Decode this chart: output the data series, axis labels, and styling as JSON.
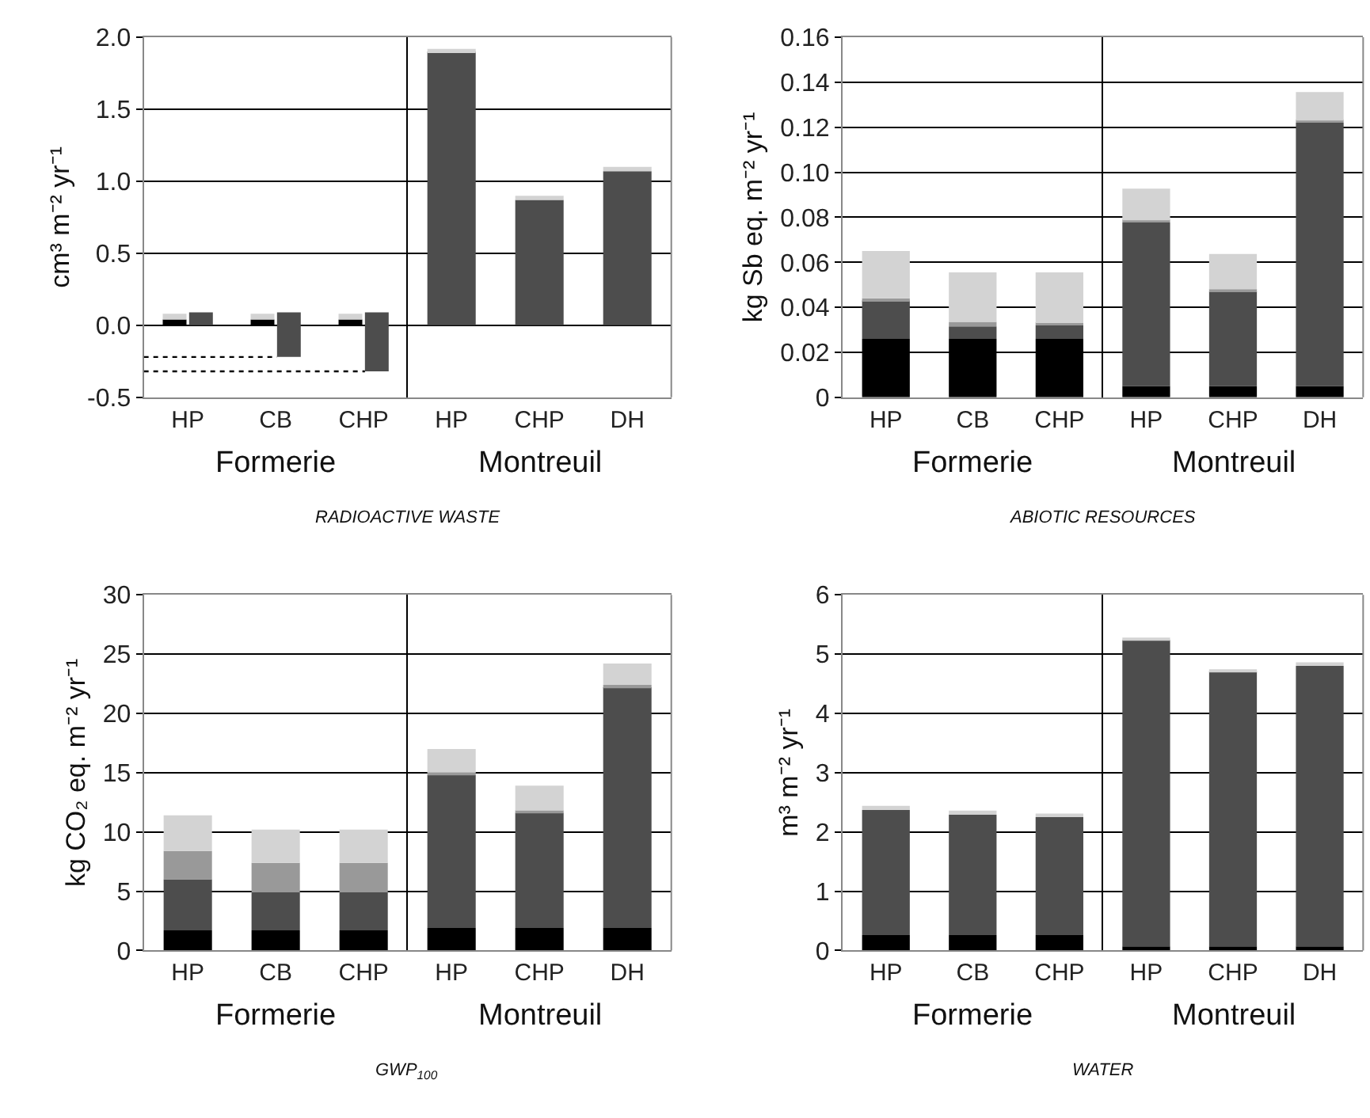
{
  "chart_data": [
    {
      "type": "bar",
      "title": "RADIOACTIVE WASTE",
      "ylabel": "cm³ m⁻² yr⁻¹",
      "categories": [
        "HP",
        "CB",
        "CHP",
        "HP",
        "CHP",
        "DH"
      ],
      "annotations": [
        "Formerie",
        "Montreuil"
      ],
      "ylim": [
        -0.5,
        2.0
      ],
      "yticks": [
        -0.5,
        {
          "value": 0.0,
          "label": "0.0"
        },
        0.5,
        {
          "value": 1.0,
          "label": "1.0"
        },
        1.5,
        {
          "value": 2.0,
          "label": "2.0"
        }
      ],
      "grid": "y",
      "legend": false,
      "series": [
        {
          "color": "#000000",
          "base": [
            0,
            0,
            0,
            null,
            null,
            null
          ],
          "values": [
            0.04,
            0.04,
            0.04,
            null,
            null,
            null
          ]
        },
        {
          "color": "#4d4d4d",
          "base": [
            0,
            -0.22,
            -0.32,
            0,
            0,
            0
          ],
          "values": [
            0.09,
            0.31,
            0.41,
            1.9,
            0.87,
            1.07
          ]
        },
        {
          "color": "#d3d3d3",
          "base": [
            0.04,
            0.04,
            0.04,
            1.9,
            0.87,
            1.07
          ],
          "values": [
            0.04,
            0.04,
            0.04,
            0.02,
            0.03,
            0.03
          ]
        }
      ],
      "ref_lines": [
        {
          "axis": "y",
          "value": -0.22,
          "color": "#000000",
          "line_style": "dotted"
        },
        {
          "axis": "y",
          "value": -0.32,
          "color": "#000000",
          "line_style": "dotted"
        }
      ]
    },
    {
      "type": "bar",
      "title": "ABIOTIC RESOURCES",
      "ylabel": "kg Sb eq. m⁻² yr⁻¹",
      "stacked": true,
      "categories": [
        "HP",
        "CB",
        "CHP",
        "HP",
        "CHP",
        "DH"
      ],
      "annotations": [
        "Formerie",
        "Montreuil"
      ],
      "ylim": [
        0,
        0.16
      ],
      "yticks": [
        0,
        0.02,
        0.04,
        0.06,
        0.08,
        {
          "value": 0.1,
          "label": "0.10"
        },
        0.12,
        0.14,
        0.16
      ],
      "grid": "y",
      "legend": false,
      "series": [
        {
          "color": "#000000",
          "values": [
            0.026,
            0.026,
            0.026,
            0.005,
            0.005,
            0.005
          ]
        },
        {
          "color": "#4d4d4d",
          "values": [
            0.017,
            0.0055,
            0.006,
            0.0727,
            0.042,
            0.117
          ]
        },
        {
          "color": "#999999",
          "values": [
            0.001,
            0.002,
            0.001,
            0.001,
            0.001,
            0.001
          ]
        },
        {
          "color": "#d3d3d3",
          "values": [
            0.021,
            0.022,
            0.0225,
            0.014,
            0.0157,
            0.0127
          ]
        }
      ]
    },
    {
      "type": "bar",
      "title": "GWP$_{100}$",
      "ylabel": "kg CO₂ eq. m⁻² yr⁻¹",
      "stacked": true,
      "categories": [
        "HP",
        "CB",
        "CHP",
        "HP",
        "CHP",
        "DH"
      ],
      "annotations": [
        "Formerie",
        "Montreuil"
      ],
      "ylim": [
        0,
        30
      ],
      "yticks": [
        0,
        5,
        10,
        15,
        20,
        25,
        30
      ],
      "grid": "y",
      "legend": false,
      "series": [
        {
          "color": "#000000",
          "values": [
            1.7,
            1.7,
            1.7,
            1.9,
            1.9,
            1.9
          ]
        },
        {
          "color": "#4d4d4d",
          "values": [
            4.3,
            3.2,
            3.2,
            12.9,
            9.7,
            20.3
          ]
        },
        {
          "color": "#999999",
          "values": [
            2.4,
            2.5,
            2.5,
            0.2,
            0.2,
            0.2
          ]
        },
        {
          "color": "#d3d3d3",
          "values": [
            3.0,
            2.8,
            2.8,
            2.0,
            2.1,
            1.8
          ]
        }
      ]
    },
    {
      "type": "bar",
      "title": "WATER",
      "ylabel": "m³ m⁻² yr⁻¹",
      "stacked": true,
      "categories": [
        "HP",
        "CB",
        "CHP",
        "HP",
        "CHP",
        "DH"
      ],
      "annotations": [
        "Formerie",
        "Montreuil"
      ],
      "ylim": [
        0,
        6
      ],
      "yticks": [
        0,
        1,
        2,
        3,
        4,
        5,
        6
      ],
      "grid": "y",
      "legend": false,
      "series": [
        {
          "color": "#000000",
          "values": [
            0.26,
            0.26,
            0.26,
            0.07,
            0.07,
            0.07
          ]
        },
        {
          "color": "#4d4d4d",
          "values": [
            2.11,
            2.03,
            1.99,
            5.17,
            4.64,
            4.73
          ]
        },
        {
          "color": "#d3d3d3",
          "values": [
            0.07,
            0.07,
            0.06,
            0.03,
            0.03,
            0.06
          ]
        }
      ]
    }
  ]
}
